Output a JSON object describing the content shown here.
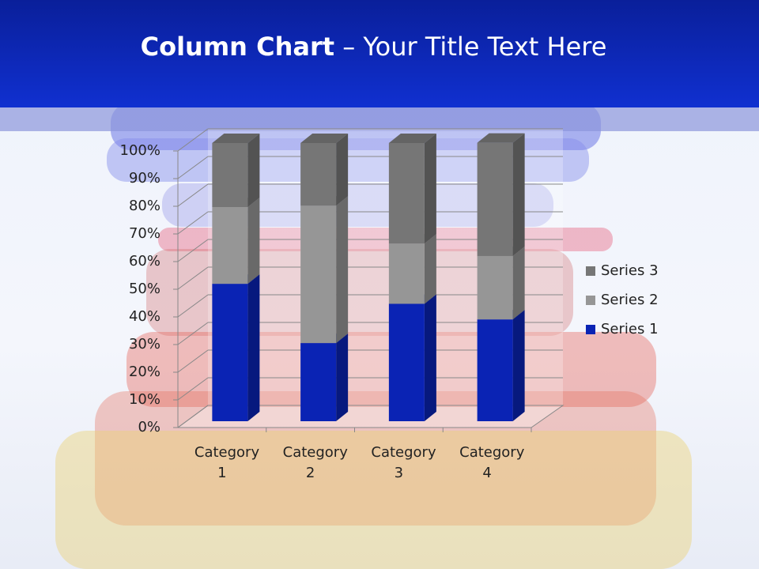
{
  "slide": {
    "title_bold": "Column Chart",
    "title_rest": "– Your Title Text Here"
  },
  "chart_data": {
    "type": "stacked_bar_3d",
    "categories": [
      "Category 1",
      "Category 2",
      "Category 3",
      "Category 4"
    ],
    "series": [
      {
        "name": "Series 1",
        "color": "#0a23b4",
        "values": [
          49.4,
          28.1,
          42.2,
          36.6
        ]
      },
      {
        "name": "Series 2",
        "color": "#969696",
        "values": [
          27.6,
          49.4,
          21.7,
          22.8
        ]
      },
      {
        "name": "Series 3",
        "color": "#767676",
        "values": [
          23.0,
          22.5,
          36.1,
          40.7
        ]
      }
    ],
    "ylim": [
      0,
      100
    ],
    "yticks": [
      {
        "value": 0,
        "label": "0%"
      },
      {
        "value": 10,
        "label": "10%"
      },
      {
        "value": 20,
        "label": "20%"
      },
      {
        "value": 30,
        "label": "30%"
      },
      {
        "value": 40,
        "label": "40%"
      },
      {
        "value": 50,
        "label": "50%"
      },
      {
        "value": 60,
        "label": "60%"
      },
      {
        "value": 70,
        "label": "70%"
      },
      {
        "value": 80,
        "label": "80%"
      },
      {
        "value": 90,
        "label": "90%"
      },
      {
        "value": 100,
        "label": "100%"
      }
    ],
    "grid": true,
    "legend": "right"
  }
}
